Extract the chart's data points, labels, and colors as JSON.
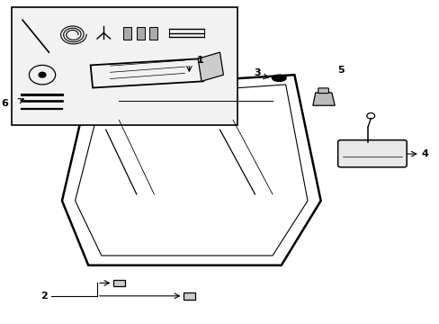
{
  "bg_color": "#ffffff",
  "line_color": "#000000",
  "label_color": "#000000",
  "fig_width": 4.89,
  "fig_height": 3.6,
  "dpi": 100
}
